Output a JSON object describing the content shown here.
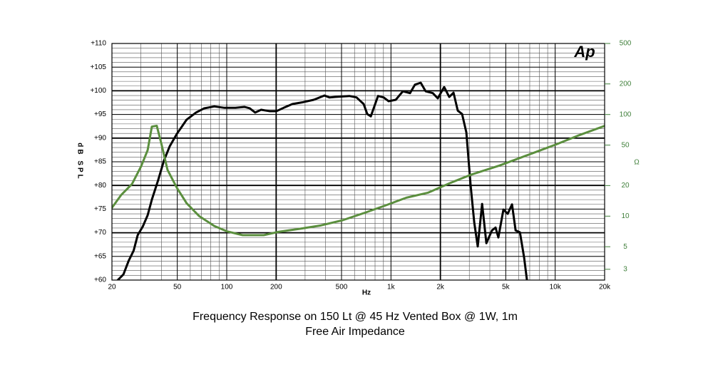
{
  "chart_data": {
    "type": "line",
    "title": "Frequency Response on 150 Lt @ 45 Hz Vented Box @ 1W, 1m",
    "subtitle": "Free Air Impedance",
    "logo": "Ap",
    "x_label": "Hz",
    "y_label": "dB SPL",
    "y2_label": "Ω",
    "xlog": true,
    "y2log": true,
    "grid": true,
    "xlim": [
      20,
      20000
    ],
    "xticks": [
      20,
      50,
      100,
      200,
      500,
      {
        "value": 1000,
        "label": "1k"
      },
      {
        "value": 2000,
        "label": "2k"
      },
      {
        "value": 5000,
        "label": "5k"
      },
      {
        "value": 10000,
        "label": "10k"
      },
      {
        "value": 20000,
        "label": "20k"
      }
    ],
    "ylim": [
      60,
      110
    ],
    "yticks": [
      {
        "value": 60,
        "label": "+60"
      },
      {
        "value": 65,
        "label": "+65"
      },
      {
        "value": 70,
        "label": "+70"
      },
      {
        "value": 75,
        "label": "+75"
      },
      {
        "value": 80,
        "label": "+80"
      },
      {
        "value": 85,
        "label": "+85"
      },
      {
        "value": 90,
        "label": "+90"
      },
      {
        "value": 95,
        "label": "+95"
      },
      {
        "value": 100,
        "label": "+100"
      },
      {
        "value": 105,
        "label": "+105"
      },
      {
        "value": 110,
        "label": "+110"
      }
    ],
    "y2lim": [
      2.35,
      500
    ],
    "y2ticks": [
      3,
      5,
      10,
      20,
      50,
      100,
      200,
      500
    ],
    "series": [
      {
        "color": "#000000",
        "x": [
          21.7,
          23.5,
          25.3,
          27.1,
          28.7,
          30.8,
          33,
          35,
          38.3,
          41.5,
          45,
          49.7,
          57,
          65,
          73,
          84,
          97,
          113,
          128,
          138,
          149,
          162,
          182,
          201,
          222,
          251,
          292,
          339,
          394,
          422,
          457,
          558,
          617,
          682,
          717,
          754,
          834,
          902,
          968,
          1070,
          1182,
          1306,
          1400,
          1518,
          1626,
          1798,
          1928,
          2108,
          2264,
          2404,
          2552,
          2710,
          2878,
          3056,
          3214,
          3376,
          3590,
          3810,
          4122,
          4334,
          4508,
          4840,
          5140,
          5460,
          5740,
          6100,
          6472,
          6730
        ],
        "values": [
          60,
          61.2,
          64.1,
          66.2,
          69.5,
          71.3,
          73.7,
          77,
          81.2,
          85.3,
          88.3,
          90.9,
          93.9,
          95.4,
          96.3,
          96.7,
          96.4,
          96.4,
          96.6,
          96.3,
          95.4,
          96,
          95.7,
          95.7,
          96.4,
          97.2,
          97.6,
          98.1,
          99,
          98.6,
          98.7,
          98.9,
          98.6,
          97.2,
          95.1,
          94.6,
          98.9,
          98.6,
          97.8,
          98.1,
          99.9,
          99.5,
          101.3,
          101.7,
          99.9,
          99.5,
          98.4,
          100.8,
          98.7,
          99.6,
          95.8,
          95.1,
          91.2,
          80,
          72.2,
          67.1,
          76.1,
          67.8,
          70.5,
          71.1,
          69,
          74.9,
          74,
          76,
          70.5,
          70.1,
          64.7,
          60
        ]
      },
      {
        "color": "#5b8f3e",
        "axis": "y2",
        "x": [
          20,
          22.8,
          26.5,
          30.1,
          33,
          35,
          37.5,
          39.9,
          43.6,
          49.7,
          57,
          68,
          84,
          100,
          125,
          168,
          206,
          277,
          374,
          506,
          682,
          920,
          1242,
          1678,
          2264,
          3056,
          4560,
          6800,
          10140,
          13680,
          20000
        ],
        "values": [
          12.1,
          16.2,
          20.7,
          30.9,
          44.6,
          76,
          77.5,
          52.5,
          28.5,
          19,
          13.4,
          10,
          8,
          7.1,
          6.5,
          6.5,
          7,
          7.5,
          8.1,
          9.1,
          10.7,
          12.7,
          15.2,
          17,
          21,
          25.5,
          31.4,
          39.9,
          50.8,
          61.7,
          77.3
        ]
      }
    ]
  }
}
